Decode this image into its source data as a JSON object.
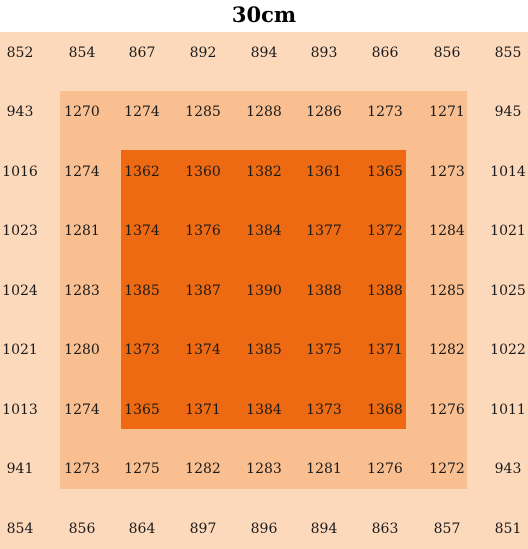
{
  "chart_data": {
    "type": "heatmap",
    "title": "30cm",
    "rows": [
      [
        852,
        854,
        867,
        892,
        894,
        893,
        866,
        856,
        855
      ],
      [
        943,
        1270,
        1274,
        1285,
        1288,
        1286,
        1273,
        1271,
        945
      ],
      [
        1016,
        1274,
        1362,
        1360,
        1382,
        1361,
        1365,
        1273,
        1014
      ],
      [
        1023,
        1281,
        1374,
        1376,
        1384,
        1377,
        1372,
        1284,
        1021
      ],
      [
        1024,
        1283,
        1385,
        1387,
        1390,
        1388,
        1388,
        1285,
        1025
      ],
      [
        1021,
        1280,
        1373,
        1374,
        1385,
        1375,
        1371,
        1282,
        1022
      ],
      [
        1013,
        1274,
        1365,
        1371,
        1384,
        1373,
        1368,
        1276,
        1011
      ],
      [
        941,
        1273,
        1275,
        1282,
        1283,
        1281,
        1276,
        1272,
        943
      ],
      [
        854,
        856,
        864,
        897,
        896,
        894,
        863,
        857,
        851
      ]
    ],
    "zones": [
      {
        "level": "outer",
        "color": "#fdd9bc"
      },
      {
        "level": "middle",
        "color": "#f9bf91"
      },
      {
        "level": "inner",
        "color": "#ee6a12"
      }
    ],
    "grid": false,
    "legend": "none"
  }
}
